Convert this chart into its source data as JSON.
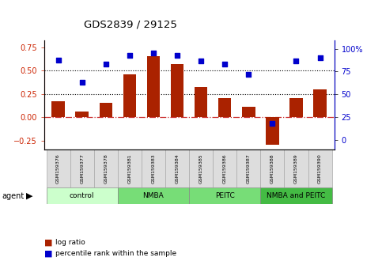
{
  "title": "GDS2839 / 29125",
  "samples": [
    "GSM159376",
    "GSM159377",
    "GSM159378",
    "GSM159381",
    "GSM159383",
    "GSM159384",
    "GSM159385",
    "GSM159386",
    "GSM159387",
    "GSM159388",
    "GSM159389",
    "GSM159390"
  ],
  "log_ratio": [
    0.17,
    0.06,
    0.15,
    0.46,
    0.65,
    0.57,
    0.32,
    0.2,
    0.11,
    -0.3,
    0.2,
    0.3
  ],
  "percentile_rank": [
    88,
    63,
    83,
    93,
    95,
    93,
    87,
    83,
    72,
    18,
    87,
    90
  ],
  "bar_color": "#aa2200",
  "dot_color": "#0000cc",
  "ylim_left": [
    -0.35,
    0.82
  ],
  "ylim_right": [
    -10.9,
    109
  ],
  "yticks_left": [
    -0.25,
    0.0,
    0.25,
    0.5,
    0.75
  ],
  "yticks_right": [
    0,
    25,
    50,
    75,
    100
  ],
  "hline_zero_color": "#cc3333",
  "hline_zero_style": "-.",
  "hline_025_color": "black",
  "hline_05_color": "black",
  "hline_025_style": ":",
  "hline_05_style": ":",
  "groups": [
    {
      "label": "control",
      "start": 0,
      "end": 3,
      "color": "#ccffcc"
    },
    {
      "label": "NMBA",
      "start": 3,
      "end": 6,
      "color": "#77dd77"
    },
    {
      "label": "PEITC",
      "start": 6,
      "end": 9,
      "color": "#77dd77"
    },
    {
      "label": "NMBA and PEITC",
      "start": 9,
      "end": 12,
      "color": "#44bb44"
    }
  ],
  "legend_items": [
    {
      "label": "log ratio",
      "color": "#aa2200"
    },
    {
      "label": "percentile rank within the sample",
      "color": "#0000cc"
    }
  ],
  "agent_label": "agent",
  "background_color": "#ffffff",
  "plot_bg_color": "#ffffff",
  "tick_label_color_left": "#cc2200",
  "tick_label_color_right": "#0000cc",
  "title_color": "#000000",
  "bar_width": 0.55,
  "sample_box_color": "#dddddd",
  "sample_box_edge": "#aaaaaa",
  "group_row_bg": "#bbbbbb"
}
